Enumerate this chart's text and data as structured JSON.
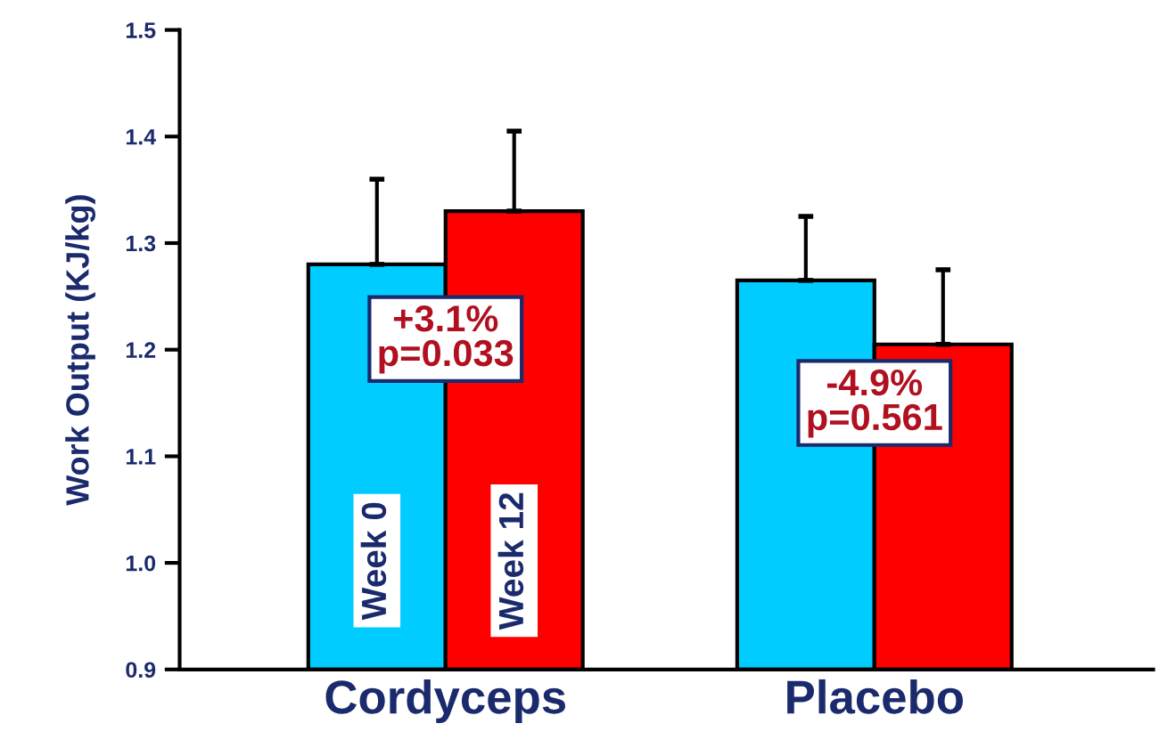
{
  "chart_data": {
    "type": "bar",
    "ylabel": "Work Output (KJ/kg)",
    "categories": [
      "Cordyceps",
      "Placebo"
    ],
    "series": [
      {
        "name": "Week 0",
        "color": "#00ccff",
        "values": [
          1.28,
          1.265
        ],
        "errors": [
          [
            1.28,
            1.36
          ],
          [
            1.265,
            1.325
          ]
        ]
      },
      {
        "name": "Week 12",
        "color": "#ff0000",
        "values": [
          1.33,
          1.205
        ],
        "errors": [
          [
            1.33,
            1.405
          ],
          [
            1.205,
            1.275
          ]
        ]
      }
    ],
    "ylim": [
      0.9,
      1.5
    ],
    "yticks": [
      {
        "value": 0.9,
        "label": "0.9"
      },
      {
        "value": 1.0,
        "label": "1.0"
      },
      {
        "value": 1.1,
        "label": "1.1"
      },
      {
        "value": 1.2,
        "label": "1.2"
      },
      {
        "value": 1.3,
        "label": "1.3"
      },
      {
        "value": 1.4,
        "label": "1.4"
      },
      {
        "value": 1.5,
        "label": "1.5"
      }
    ],
    "annotations": [
      "+3.1%\np=0.033",
      "-4.9%\np=0.561"
    ],
    "grid": false,
    "legend": false
  }
}
